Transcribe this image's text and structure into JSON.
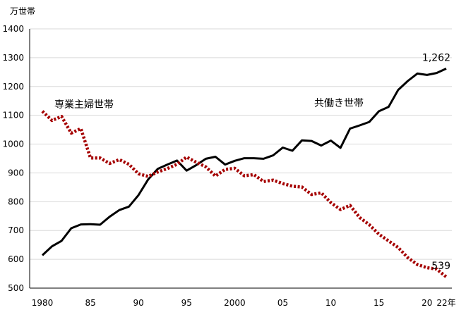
{
  "chart_data": {
    "type": "line",
    "y_unit_label": "万世帯",
    "xlabel": "",
    "ylabel": "",
    "ylim": [
      500,
      1400
    ],
    "y_ticks": [
      500,
      600,
      700,
      800,
      900,
      1000,
      1100,
      1200,
      1300,
      1400
    ],
    "grid": true,
    "x_range": [
      1980,
      2022
    ],
    "x_ticks": [
      {
        "value": 1980,
        "label": "1980"
      },
      {
        "value": 1985,
        "label": "85"
      },
      {
        "value": 1990,
        "label": "90"
      },
      {
        "value": 1995,
        "label": "95"
      },
      {
        "value": 2000,
        "label": "2000"
      },
      {
        "value": 2005,
        "label": "05"
      },
      {
        "value": 2010,
        "label": "10"
      },
      {
        "value": 2015,
        "label": "15"
      },
      {
        "value": 2020,
        "label": "20"
      },
      {
        "value": 2022,
        "label": "22年"
      }
    ],
    "x": [
      1980,
      1981,
      1982,
      1983,
      1984,
      1985,
      1986,
      1987,
      1988,
      1989,
      1990,
      1991,
      1992,
      1993,
      1994,
      1995,
      1996,
      1997,
      1998,
      1999,
      2000,
      2001,
      2002,
      2003,
      2004,
      2005,
      2006,
      2007,
      2008,
      2009,
      2010,
      2011,
      2012,
      2013,
      2014,
      2015,
      2016,
      2017,
      2018,
      2019,
      2020,
      2021,
      2022
    ],
    "series": [
      {
        "name": "共働き世帯",
        "color": "#000000",
        "style": "solid",
        "values": [
          614,
          645,
          664,
          708,
          721,
          722,
          720,
          748,
          771,
          783,
          823,
          877,
          914,
          929,
          943,
          908,
          927,
          949,
          956,
          929,
          942,
          951,
          951,
          949,
          961,
          988,
          977,
          1013,
          1011,
          995,
          1012,
          987,
          1054,
          1065,
          1077,
          1114,
          1129,
          1188,
          1219,
          1245,
          1240,
          1247,
          1262
        ],
        "end_label": "1,262"
      },
      {
        "name": "専業主婦世帯",
        "color": "#a50000",
        "style": "dotted",
        "values": [
          1114,
          1082,
          1096,
          1038,
          1054,
          952,
          952,
          933,
          946,
          930,
          897,
          888,
          903,
          915,
          930,
          955,
          937,
          921,
          889,
          912,
          916,
          890,
          894,
          870,
          875,
          863,
          854,
          851,
          825,
          831,
          797,
          773,
          787,
          745,
          720,
          687,
          664,
          641,
          606,
          582,
          571,
          566,
          539
        ],
        "end_label": "539"
      }
    ]
  }
}
